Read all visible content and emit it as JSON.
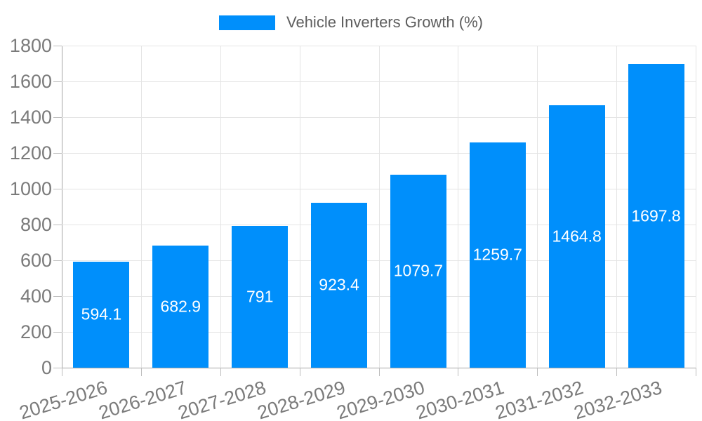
{
  "chart_data": {
    "type": "bar",
    "title": "Vehicle Inverters Growth (%)",
    "categories": [
      "2025-2026",
      "2026-2027",
      "2027-2028",
      "2028-2029",
      "2029-2030",
      "2030-2031",
      "2031-2032",
      "2032-2033"
    ],
    "values": [
      594.1,
      682.9,
      791,
      923.4,
      1079.7,
      1259.7,
      1464.8,
      1697.8
    ],
    "value_labels": [
      "594.1",
      "682.9",
      "791",
      "923.4",
      "1079.7",
      "1259.7",
      "1464.8",
      "1697.8"
    ],
    "xlabel": "",
    "ylabel": "",
    "ylim": [
      0,
      1800
    ],
    "yticks": [
      0,
      200,
      400,
      600,
      800,
      1000,
      1200,
      1400,
      1600,
      1800
    ],
    "grid": true,
    "legend": {
      "label": "Vehicle Inverters Growth (%)",
      "position": "top-center"
    },
    "colors": {
      "bar": "#008FFB",
      "value_label": "#FFFFFF",
      "axis_text": "#7B7B7B",
      "legend_text": "#5E5E5E",
      "gridline": "#E4E4E4",
      "axis_line": "#A6A6A6",
      "tick_mark": "#BDBDBD",
      "background": "#FFFFFF"
    }
  }
}
